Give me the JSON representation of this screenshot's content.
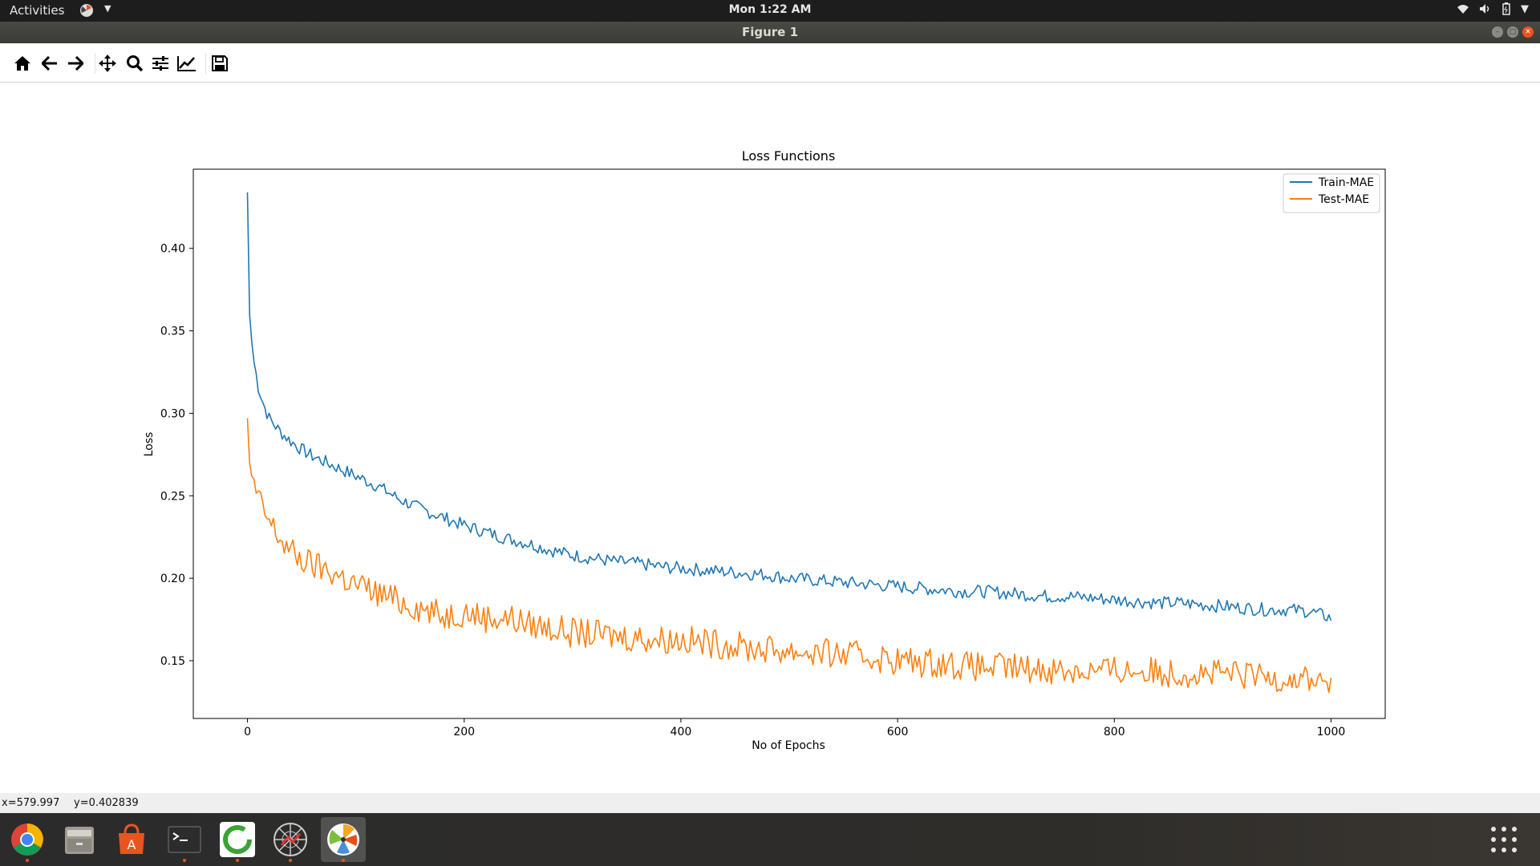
{
  "topbar": {
    "activities": "Activities",
    "clock": "Mon  1:22 AM"
  },
  "window": {
    "title": "Figure 1"
  },
  "toolbar": {
    "buttons": [
      "home-icon",
      "back-icon",
      "forward-icon",
      "pan-icon",
      "zoom-icon",
      "configure-subplots-icon",
      "edit-axes-icon",
      "save-icon"
    ]
  },
  "statusbar": {
    "x": "x=579.997",
    "y": "y=0.402839"
  },
  "dock": {
    "apps": [
      "chrome-icon",
      "files-icon",
      "software-center-icon",
      "terminal-icon",
      "update-manager-icon",
      "network-app-icon",
      "figure-window-icon"
    ]
  },
  "colors": {
    "train": "#1f77b4",
    "test": "#ff7f0e",
    "accent": "#e95420"
  },
  "chart_data": {
    "type": "line",
    "title": "Loss Functions",
    "xlabel": "No of Epochs",
    "ylabel": "Loss",
    "xlim": [
      -50,
      1050
    ],
    "ylim": [
      0.115,
      0.448
    ],
    "xticks": [
      0,
      200,
      400,
      600,
      800,
      1000
    ],
    "yticks": [
      0.15,
      0.2,
      0.25,
      0.3,
      0.35,
      0.4
    ],
    "legend_position": "top-right",
    "series": [
      {
        "name": "Train-MAE",
        "color": "#1f77b4",
        "x": [
          0,
          2,
          5,
          10,
          15,
          20,
          30,
          40,
          50,
          60,
          80,
          100,
          120,
          140,
          160,
          180,
          200,
          220,
          240,
          260,
          280,
          300,
          320,
          340,
          360,
          380,
          400,
          420,
          440,
          460,
          480,
          500,
          520,
          540,
          560,
          580,
          600,
          620,
          640,
          660,
          680,
          700,
          720,
          740,
          760,
          780,
          800,
          820,
          840,
          860,
          880,
          900,
          920,
          940,
          960,
          980,
          1000
        ],
        "y": [
          0.434,
          0.36,
          0.335,
          0.316,
          0.305,
          0.297,
          0.289,
          0.283,
          0.278,
          0.274,
          0.268,
          0.262,
          0.256,
          0.248,
          0.242,
          0.237,
          0.232,
          0.228,
          0.224,
          0.221,
          0.217,
          0.214,
          0.212,
          0.21,
          0.209,
          0.207,
          0.206,
          0.205,
          0.204,
          0.203,
          0.202,
          0.2,
          0.199,
          0.198,
          0.197,
          0.196,
          0.195,
          0.194,
          0.193,
          0.192,
          0.192,
          0.191,
          0.19,
          0.189,
          0.189,
          0.188,
          0.187,
          0.186,
          0.185,
          0.185,
          0.184,
          0.183,
          0.182,
          0.181,
          0.181,
          0.18,
          0.176
        ]
      },
      {
        "name": "Test-MAE",
        "color": "#ff7f0e",
        "x": [
          0,
          2,
          5,
          10,
          15,
          20,
          30,
          40,
          50,
          60,
          80,
          100,
          120,
          140,
          160,
          180,
          200,
          220,
          240,
          260,
          280,
          300,
          320,
          340,
          360,
          380,
          400,
          420,
          440,
          460,
          480,
          500,
          520,
          540,
          560,
          580,
          600,
          620,
          640,
          660,
          680,
          700,
          720,
          740,
          760,
          780,
          800,
          820,
          840,
          860,
          880,
          900,
          920,
          940,
          960,
          980,
          1000
        ],
        "y": [
          0.297,
          0.27,
          0.258,
          0.248,
          0.24,
          0.234,
          0.224,
          0.216,
          0.211,
          0.208,
          0.203,
          0.196,
          0.191,
          0.186,
          0.182,
          0.177,
          0.18,
          0.176,
          0.176,
          0.172,
          0.17,
          0.167,
          0.166,
          0.165,
          0.164,
          0.163,
          0.163,
          0.161,
          0.16,
          0.158,
          0.157,
          0.156,
          0.155,
          0.154,
          0.153,
          0.152,
          0.15,
          0.149,
          0.149,
          0.147,
          0.146,
          0.146,
          0.145,
          0.145,
          0.144,
          0.144,
          0.144,
          0.144,
          0.143,
          0.143,
          0.142,
          0.142,
          0.141,
          0.14,
          0.14,
          0.139,
          0.137
        ]
      }
    ]
  }
}
